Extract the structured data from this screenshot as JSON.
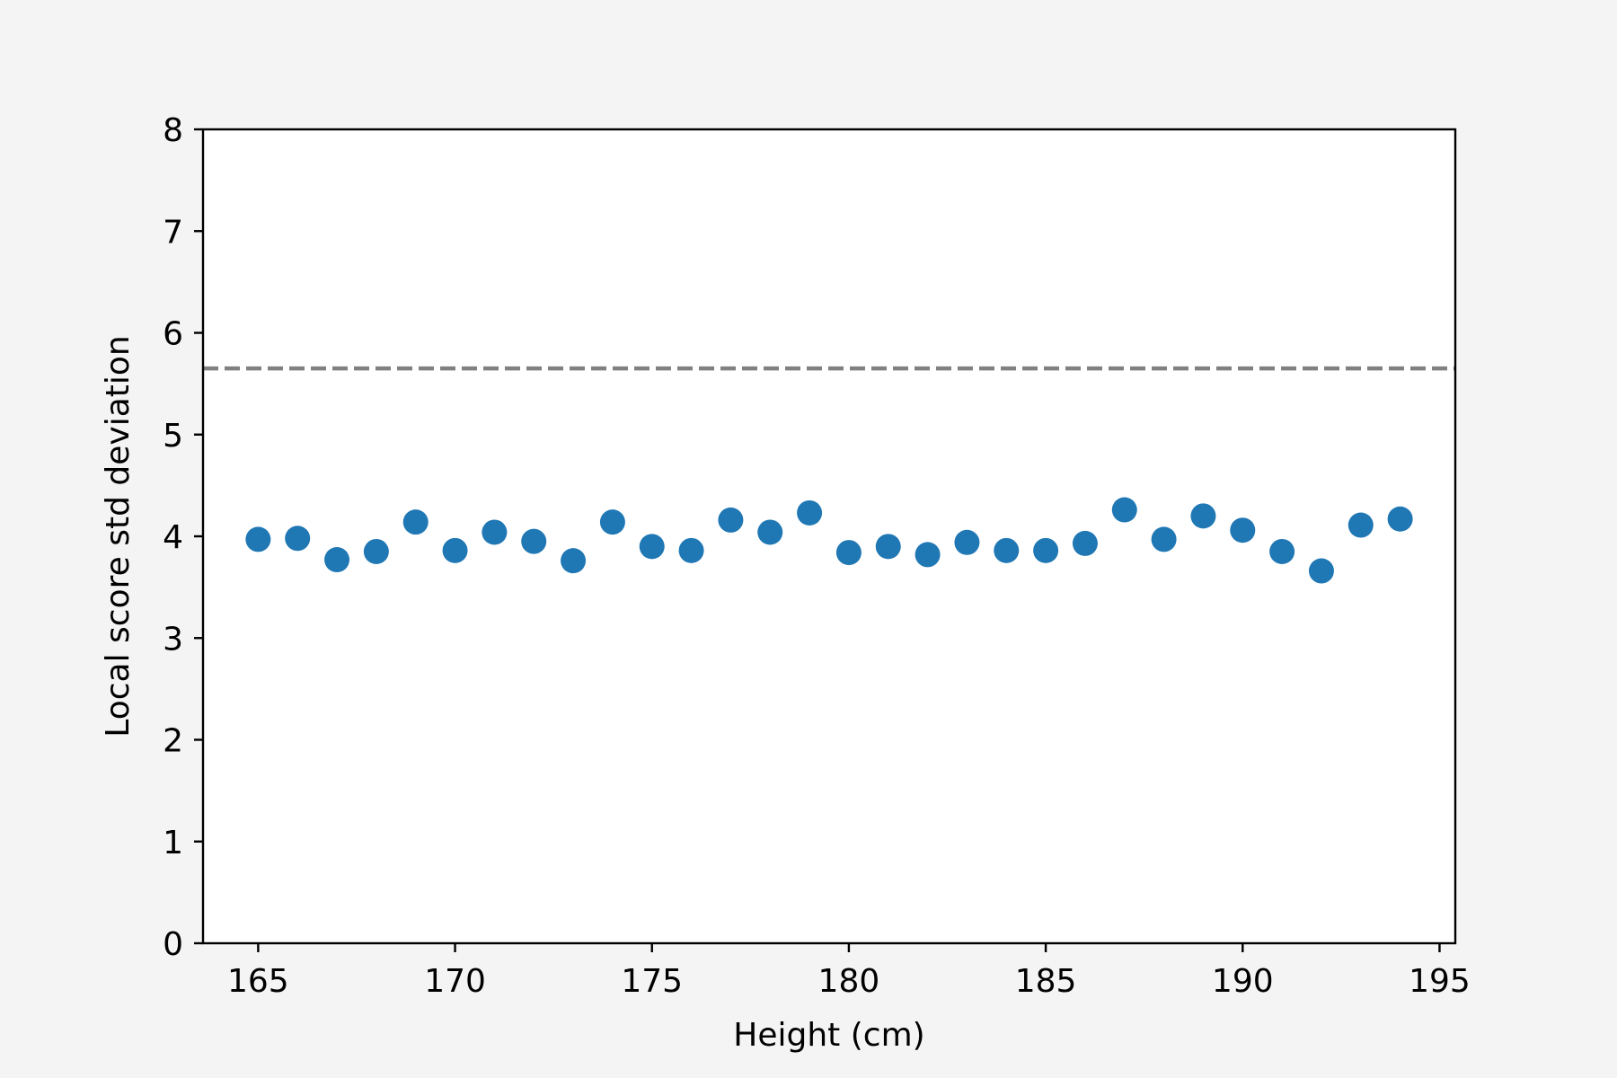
{
  "chart_data": {
    "type": "scatter",
    "title": "",
    "xlabel": "Height (cm)",
    "ylabel": "Local score std deviation",
    "xlim": [
      163.6,
      195.4
    ],
    "ylim": [
      0,
      8
    ],
    "x_ticks": [
      165,
      170,
      175,
      180,
      185,
      190,
      195
    ],
    "y_ticks": [
      0,
      1,
      2,
      3,
      4,
      5,
      6,
      7,
      8
    ],
    "grid": false,
    "series": [
      {
        "color": "#1f77b4",
        "x": [
          165,
          166,
          167,
          168,
          169,
          170,
          171,
          172,
          173,
          174,
          175,
          176,
          177,
          178,
          179,
          180,
          181,
          182,
          183,
          184,
          185,
          186,
          187,
          188,
          189,
          190,
          191,
          192,
          193,
          194
        ],
        "y": [
          3.97,
          3.98,
          3.77,
          3.85,
          4.14,
          3.86,
          4.04,
          3.95,
          3.76,
          4.14,
          3.9,
          3.86,
          4.16,
          4.04,
          4.23,
          3.84,
          3.9,
          3.82,
          3.94,
          3.86,
          3.86,
          3.93,
          4.26,
          3.97,
          4.2,
          4.06,
          3.85,
          3.66,
          4.11,
          4.17
        ]
      }
    ],
    "reference_line": {
      "y": 5.65,
      "color": "#808080",
      "style": "dashed"
    }
  }
}
